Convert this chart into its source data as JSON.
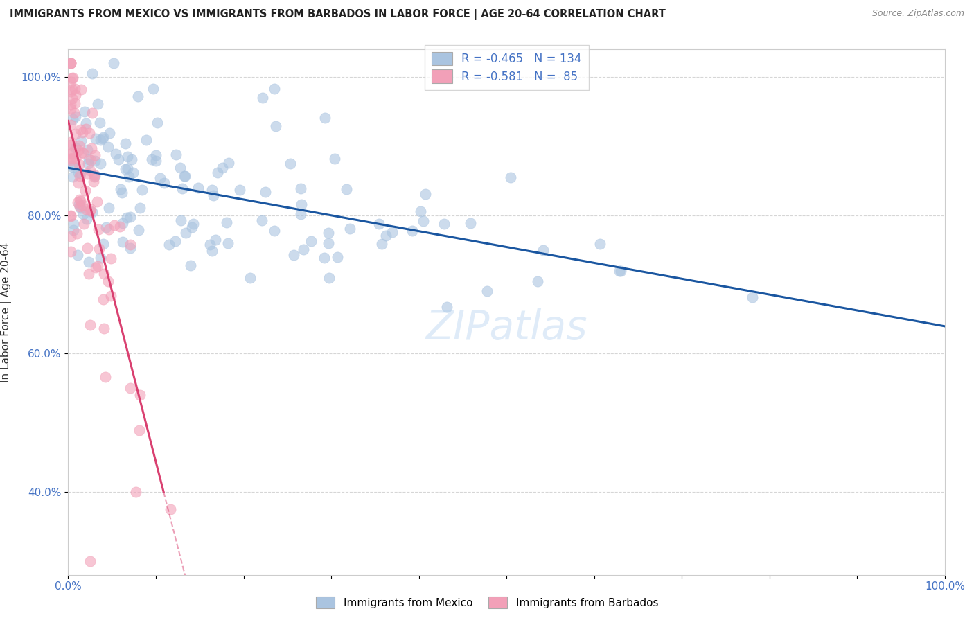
{
  "title": "IMMIGRANTS FROM MEXICO VS IMMIGRANTS FROM BARBADOS IN LABOR FORCE | AGE 20-64 CORRELATION CHART",
  "source": "Source: ZipAtlas.com",
  "ylabel": "In Labor Force | Age 20-64",
  "x_label_bottom": "Immigrants from Mexico",
  "x_label_bottom_barbados": "Immigrants from Barbados",
  "xlim": [
    0.0,
    1.0
  ],
  "ylim": [
    0.28,
    1.04
  ],
  "y_ticks": [
    0.4,
    0.6,
    0.8,
    1.0
  ],
  "y_tick_labels": [
    "40.0%",
    "60.0%",
    "80.0%",
    "100.0%"
  ],
  "mexico_color": "#aac4e0",
  "barbados_color": "#f2a0b8",
  "mexico_line_color": "#1a56a0",
  "barbados_line_color": "#d94070",
  "watermark": "ZIPatlas",
  "legend_r_mexico": "-0.465",
  "legend_n_mexico": "134",
  "legend_r_barbados": "-0.581",
  "legend_n_barbados": "85"
}
